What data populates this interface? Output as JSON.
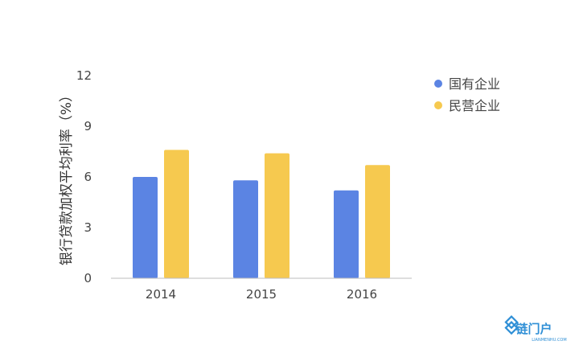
{
  "chart_data": {
    "type": "bar",
    "categories": [
      "2014",
      "2015",
      "2016"
    ],
    "series": [
      {
        "name": "国有企业",
        "color": "#5b84e3",
        "values": [
          6.0,
          5.8,
          5.2
        ]
      },
      {
        "name": "民营企业",
        "color": "#f6c94f",
        "values": [
          7.6,
          7.4,
          6.7
        ]
      }
    ],
    "ylabel": "银行贷款加权平均利率（%）",
    "xlabel": "",
    "ylim": [
      0,
      12
    ],
    "yticks": [
      "0",
      "3",
      "6",
      "9",
      "12"
    ],
    "grid": false,
    "legend_position": "top-right"
  },
  "watermark": {
    "text": "链门户",
    "subtext": "LIANMENHU.COM",
    "color": "#2f8fd6"
  }
}
